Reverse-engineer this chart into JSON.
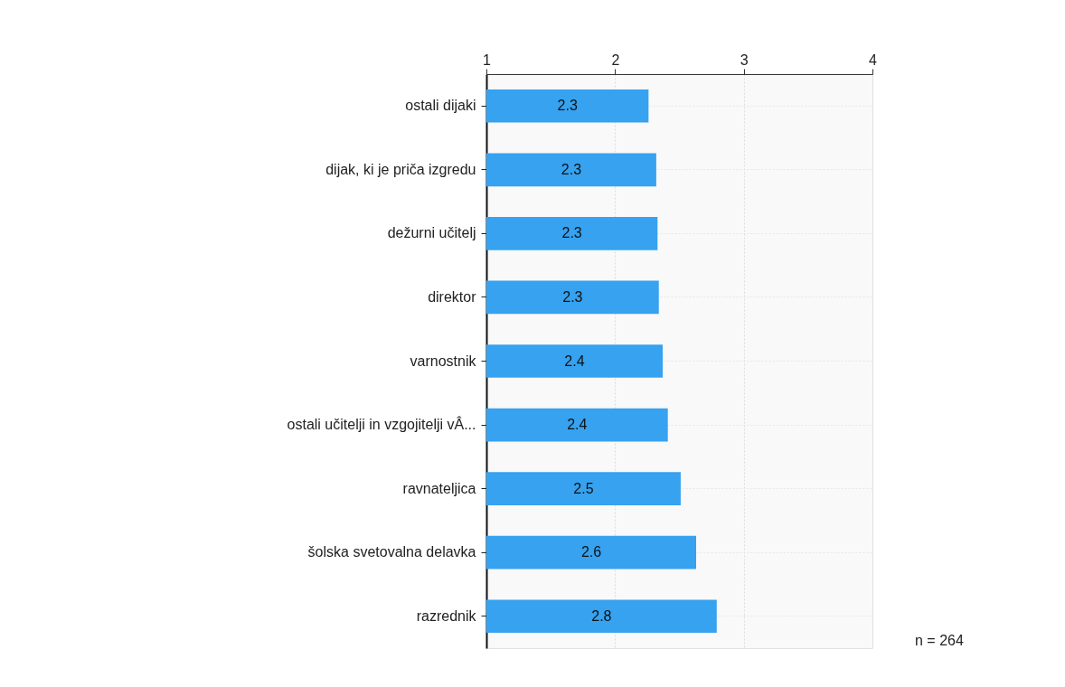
{
  "chart_data": {
    "type": "bar",
    "orientation": "horizontal",
    "categories": [
      "ostali dijaki",
      "dijak, ki je priča izgredu",
      "dežurni učitelj",
      "direktor",
      "varnostnik",
      "ostali učitelji in vzgojitelji vÂ...",
      "ravnateljica",
      "šolska svetovalna delavka",
      "razrednik"
    ],
    "values": [
      2.26,
      2.32,
      2.33,
      2.34,
      2.37,
      2.41,
      2.51,
      2.63,
      2.79
    ],
    "value_labels": [
      "2.3",
      "2.3",
      "2.3",
      "2.3",
      "2.4",
      "2.4",
      "2.5",
      "2.6",
      "2.8"
    ],
    "color": "#36a2f0",
    "xlim": [
      1,
      4
    ],
    "xticks": [
      1,
      2,
      3,
      4
    ],
    "grid": true,
    "annotations": [
      "n = 264"
    ]
  }
}
